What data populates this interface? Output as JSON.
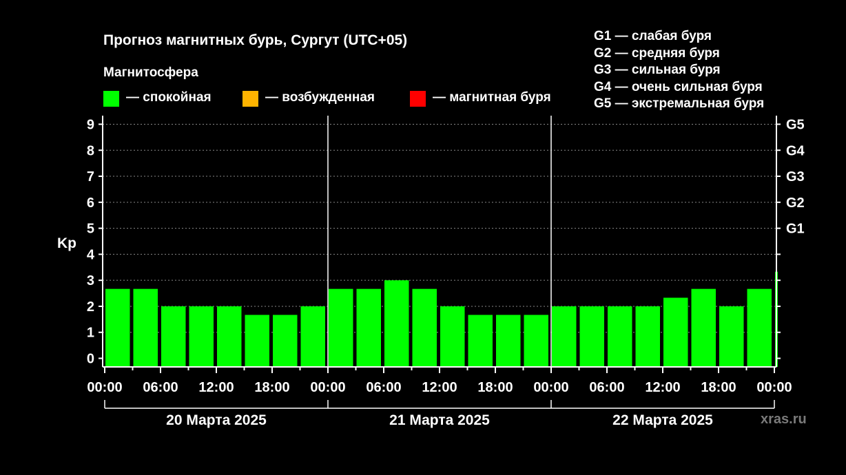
{
  "title": "Прогноз магнитных бурь, Сургут (UTC+05)",
  "subtitle": "Магнитосфера",
  "legend": [
    {
      "label": "— спокойная",
      "color": "#00ff00"
    },
    {
      "label": "— возбужденная",
      "color": "#ffb400"
    },
    {
      "label": "— магнитная буря",
      "color": "#ff0000"
    }
  ],
  "g_legend": [
    "G1 — слабая буря",
    "G2 — средняя буря",
    "G3 — сильная буря",
    "G4 — очень сильная буря",
    "G5 — экстремальная буря"
  ],
  "watermark": "xras.ru",
  "chart_data": {
    "type": "bar",
    "ylabel": "Kp",
    "ylim": [
      -0.33,
      9.33
    ],
    "yticks": [
      "0",
      "1",
      "2",
      "3",
      "4",
      "5",
      "6",
      "7",
      "8",
      "9"
    ],
    "right_ticks": [
      {
        "value": 5,
        "label": "G1"
      },
      {
        "value": 6,
        "label": "G2"
      },
      {
        "value": 7,
        "label": "G3"
      },
      {
        "value": 8,
        "label": "G4"
      },
      {
        "value": 9,
        "label": "G5"
      }
    ],
    "xticks": [
      "00:00",
      "06:00",
      "12:00",
      "18:00",
      "00:00",
      "06:00",
      "12:00",
      "18:00",
      "00:00",
      "06:00",
      "12:00",
      "18:00",
      "00:00"
    ],
    "days": [
      "20 Марта 2025",
      "21 Марта 2025",
      "22 Марта 2025"
    ],
    "grid": true,
    "bar_color": "#00ff00",
    "values": [
      2.67,
      2.67,
      2.0,
      2.0,
      2.0,
      1.67,
      1.67,
      2.0,
      2.67,
      2.67,
      3.0,
      2.67,
      2.0,
      1.67,
      1.67,
      1.67,
      2.0,
      2.0,
      2.0,
      2.0,
      2.33,
      2.67,
      2.0,
      2.67,
      3.33
    ]
  }
}
